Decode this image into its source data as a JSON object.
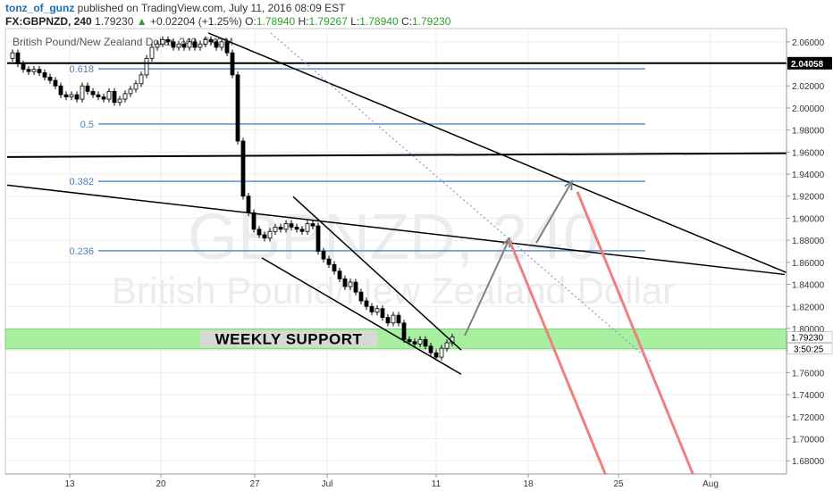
{
  "header": {
    "username": "tonz_of_gunz",
    "published_text": " published on TradingView.com, July 11, 2016 08:09 EST",
    "symbol": "FX:GBPNZD, 240",
    "last_price": "1.79230",
    "change": "+0.02204 (+1.25%)",
    "open_label": "O:",
    "open": "1.78940",
    "high_label": "H:",
    "high": "1.79267",
    "low_label": "L:",
    "low": "1.78940",
    "close_label": "C:",
    "close": "1.79230"
  },
  "colors": {
    "candle_up": "#ffffff",
    "candle_down": "#000000",
    "fib_line": "#5b8fd0",
    "fib_label": "#4a7fc0",
    "trend_line": "#000000",
    "projection_arrow": "#808080",
    "red_channel": "#f08080",
    "support_zone": "#a8f0a0",
    "price_tag_bg": "#000000",
    "price_tag_text": "#ffffff"
  },
  "chart_data": {
    "type": "candlestick",
    "title": "British Pound/New Zealand Dollar, 240, FXCM",
    "watermark_symbol": "GBPNZD, 240",
    "watermark_name": "British Pound/New Zealand Dollar",
    "x_tick_labels": [
      "13",
      "20",
      "27",
      "Jul",
      "11",
      "18",
      "25",
      "Aug"
    ],
    "y_ticks": [
      "2.06000",
      "2.04000",
      "2.02000",
      "2.00000",
      "1.98000",
      "1.96000",
      "1.94000",
      "1.92000",
      "1.90000",
      "1.88000",
      "1.86000",
      "1.84000",
      "1.82000",
      "1.80000",
      "1.78000",
      "1.76000",
      "1.74000",
      "1.72000",
      "1.70000",
      "1.68000"
    ],
    "y_range": [
      1.668,
      2.072
    ],
    "horizontal_level": "2.04058",
    "last_price_tag": "1.79230",
    "countdown_tag": "3:50:25",
    "fib_levels": [
      {
        "label": "0.618",
        "price": 2.0355
      },
      {
        "label": "0.5",
        "price": 1.9855
      },
      {
        "label": "0.382",
        "price": 1.9335
      },
      {
        "label": "0.236",
        "price": 1.8705
      }
    ],
    "support_zone": {
      "label": "WEEKLY SUPPORT",
      "top": 1.7995,
      "bottom": 1.7815
    },
    "price_series": {
      "x": [
        0,
        6,
        12,
        18,
        24,
        30,
        36,
        42,
        48,
        54,
        60,
        66,
        72,
        78,
        84,
        90,
        96,
        102,
        108,
        114,
        120,
        126,
        132,
        138,
        144,
        150,
        156,
        162,
        168,
        174,
        180,
        186,
        192,
        198,
        204,
        210,
        216,
        222,
        228,
        234,
        240,
        246,
        252,
        258,
        264,
        270,
        276,
        282,
        288,
        294,
        300,
        306,
        312,
        318,
        324,
        330,
        336,
        342,
        348,
        354,
        360,
        366,
        372,
        378,
        384,
        390,
        396,
        402,
        408,
        414,
        420,
        426,
        432,
        438,
        444,
        450,
        456,
        462,
        468,
        474,
        480,
        486,
        492,
        498
      ],
      "close": [
        2.045,
        2.05,
        2.04,
        2.035,
        2.033,
        2.035,
        2.032,
        2.028,
        2.025,
        2.02,
        2.012,
        2.01,
        2.012,
        2.008,
        2.02,
        2.015,
        2.012,
        2.01,
        2.008,
        2.015,
        2.005,
        2.008,
        2.013,
        2.017,
        2.022,
        2.03,
        2.045,
        2.055,
        2.058,
        2.062,
        2.06,
        2.055,
        2.058,
        2.055,
        2.06,
        2.055,
        2.058,
        2.062,
        2.06,
        2.055,
        2.06,
        2.05,
        2.03,
        1.97,
        1.92,
        1.905,
        1.89,
        1.885,
        1.882,
        1.888,
        1.892,
        1.89,
        1.895,
        1.892,
        1.89,
        1.888,
        1.895,
        1.893,
        1.87,
        1.863,
        1.858,
        1.852,
        1.845,
        1.838,
        1.842,
        1.833,
        1.825,
        1.82,
        1.815,
        1.818,
        1.81,
        1.805,
        1.812,
        1.805,
        1.79,
        1.788,
        1.786,
        1.79,
        1.784,
        1.778,
        1.774,
        1.782,
        1.787,
        1.7923
      ]
    },
    "annotations": [
      {
        "type": "trendline",
        "from": [
          0,
          1.93
        ],
        "to": [
          870,
          1.849
        ]
      },
      {
        "type": "trendline",
        "from": [
          225,
          2.068
        ],
        "to": [
          880,
          1.848
        ]
      },
      {
        "type": "hline",
        "from": [
          0,
          1.9555
        ],
        "to": [
          880,
          1.959
        ]
      },
      {
        "type": "hline",
        "from": [
          0,
          2.04058
        ],
        "to": [
          880,
          2.04058
        ]
      },
      {
        "type": "dotted",
        "from": [
          295,
          2.068
        ],
        "to": [
          720,
          1.77
        ]
      },
      {
        "type": "channel-top",
        "from": [
          320,
          1.9195
        ],
        "to": [
          508,
          1.7805
        ]
      },
      {
        "type": "channel-bottom",
        "from": [
          285,
          1.864
        ],
        "to": [
          508,
          1.7585
        ]
      },
      {
        "type": "arrow",
        "from": [
          512,
          1.7935
        ],
        "to": [
          562,
          1.8815
        ]
      },
      {
        "type": "arrow",
        "from": [
          592,
          1.8775
        ],
        "to": [
          632,
          1.9335
        ]
      },
      {
        "type": "red-line",
        "from": [
          562,
          1.88
        ],
        "to": [
          670,
          1.6665
        ]
      },
      {
        "type": "red-line",
        "from": [
          638,
          1.924
        ],
        "to": [
          768,
          1.6665
        ]
      }
    ]
  }
}
